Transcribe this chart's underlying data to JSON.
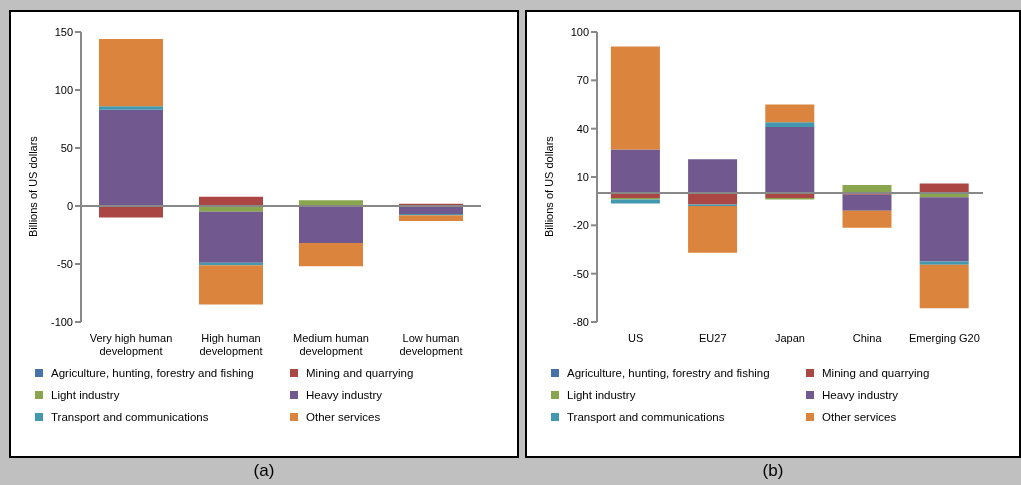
{
  "chart_data": [
    {
      "type": "bar",
      "stacked": true,
      "ylabel": "Billions of US dollars",
      "categories": [
        "Very high human development",
        "High human development",
        "Medium human development",
        "Low human development"
      ],
      "ylim": [
        -100,
        150
      ],
      "yticks": [
        -100,
        -50,
        0,
        50,
        100,
        150
      ],
      "grid": false,
      "ref_lines": [
        {
          "axis": "y",
          "value": 0,
          "color": "#888888"
        }
      ],
      "legend": "bottom",
      "annotations": [
        "(a)"
      ],
      "series": [
        {
          "name": "Agriculture, hunting, forestry and fishing",
          "color": "#4572a7",
          "values": [
            0,
            0,
            0,
            0
          ]
        },
        {
          "name": "Mining and quarrying",
          "color": "#aa4643",
          "values": [
            -10,
            8,
            0,
            2
          ]
        },
        {
          "name": "Light industry",
          "color": "#89a54e",
          "values": [
            0,
            -5,
            5,
            0
          ]
        },
        {
          "name": "Heavy industry",
          "color": "#71588f",
          "values": [
            83,
            -44,
            -32,
            -7
          ]
        },
        {
          "name": "Transport and communications",
          "color": "#4198af",
          "values": [
            3,
            -2,
            0,
            -1
          ]
        },
        {
          "name": "Other services",
          "color": "#db843d",
          "values": [
            58,
            -34,
            -20,
            -5
          ]
        }
      ]
    },
    {
      "type": "bar",
      "stacked": true,
      "ylabel": "Billions of US dollars",
      "categories": [
        "US",
        "EU27",
        "Japan",
        "China",
        "Emerging G20"
      ],
      "ylim": [
        -80,
        100
      ],
      "yticks": [
        -80,
        -50,
        -20,
        10,
        40,
        70,
        100
      ],
      "grid": false,
      "ref_lines": [
        {
          "axis": "y",
          "value": 0,
          "color": "#888888"
        }
      ],
      "legend": "bottom",
      "annotations": [
        "(b)"
      ],
      "series": [
        {
          "name": "Agriculture, hunting, forestry and fishing",
          "color": "#4572a7",
          "values": [
            0,
            0,
            0,
            0,
            0
          ]
        },
        {
          "name": "Mining and quarrying",
          "color": "#aa4643",
          "values": [
            -3,
            -7,
            -3,
            -1,
            6
          ]
        },
        {
          "name": "Light industry",
          "color": "#89a54e",
          "values": [
            -1,
            0,
            -1,
            5,
            -2.5
          ]
        },
        {
          "name": "Heavy industry",
          "color": "#71588f",
          "values": [
            27,
            21,
            41,
            -10,
            -40
          ]
        },
        {
          "name": "Transport and communications",
          "color": "#4198af",
          "values": [
            -2.5,
            -1,
            3,
            0,
            -2
          ]
        },
        {
          "name": "Other services",
          "color": "#db843d",
          "values": [
            64,
            -29,
            11,
            -10.5,
            -27
          ]
        }
      ]
    }
  ]
}
